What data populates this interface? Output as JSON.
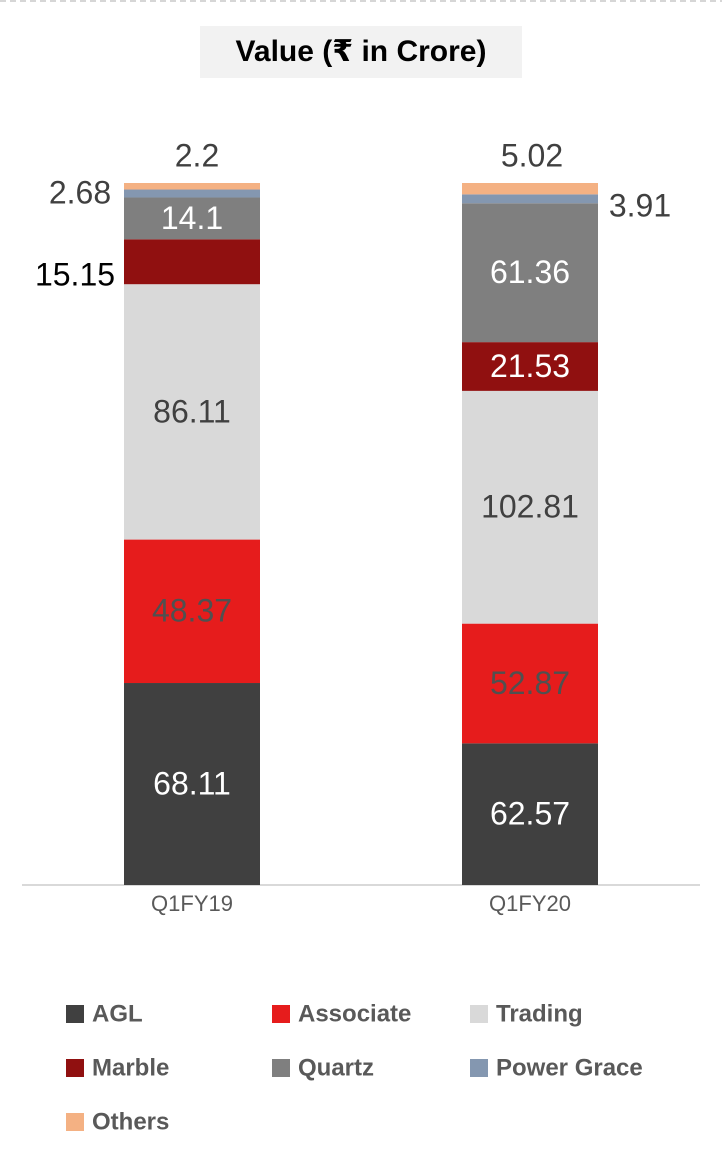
{
  "chart_data": {
    "type": "bar",
    "stacking": "percent",
    "title": "Value (₹ in Crore)",
    "categories": [
      "Q1FY19",
      "Q1FY20"
    ],
    "series": [
      {
        "name": "AGL",
        "color": "#404040",
        "values": [
          68.11,
          62.57
        ]
      },
      {
        "name": "Associate",
        "color": "#e61c1c",
        "values": [
          48.37,
          52.87
        ]
      },
      {
        "name": "Trading",
        "color": "#d9d9d9",
        "values": [
          86.11,
          102.81
        ]
      },
      {
        "name": "Marble",
        "color": "#901010",
        "values": [
          15.15,
          21.53
        ]
      },
      {
        "name": "Quartz",
        "color": "#7f7f7f",
        "values": [
          14.1,
          61.36
        ]
      },
      {
        "name": "Power Grace",
        "color": "#8497b0",
        "values": [
          2.68,
          3.91
        ]
      },
      {
        "name": "Others",
        "color": "#f4b183",
        "values": [
          2.2,
          5.02
        ]
      }
    ]
  }
}
